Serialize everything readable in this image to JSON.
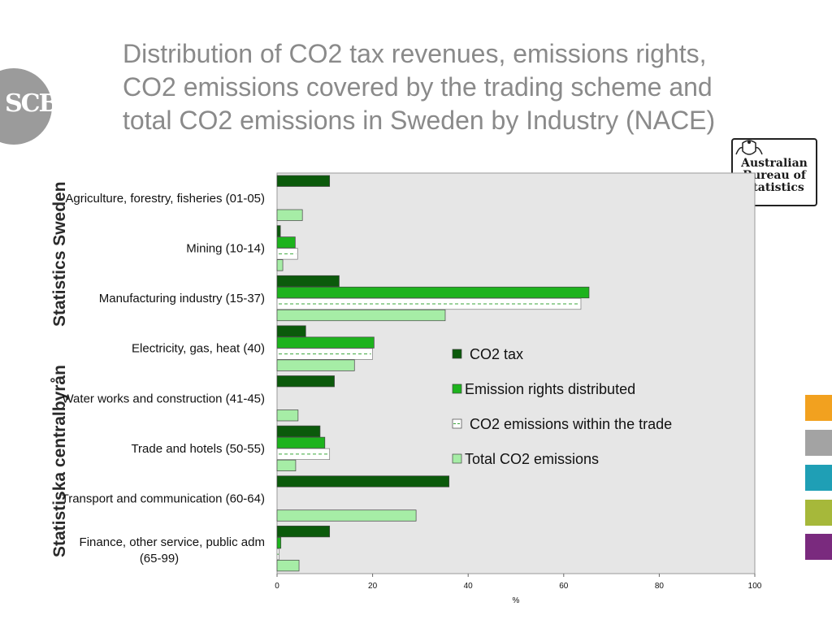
{
  "title": "Distribution of CO2 tax revenues, emissions rights,\nCO2 emissions covered by the trading scheme and\ntotal CO2 emissions in Sweden by Industry (NACE)",
  "side_branding": {
    "logo_text": "SCB",
    "vertical_text_1": "Statistics Sweden",
    "vertical_text_2": "Statistiska centralbyrån"
  },
  "abs_logo": {
    "line1": "Australian",
    "line2": "Bureau of",
    "line3": "Statistics"
  },
  "swatches": [
    "#f2a11f",
    "#a3a3a3",
    "#1f9fb5",
    "#a6b83a",
    "#7a2a7e"
  ],
  "colors": {
    "plot_background": "#e6e6e6",
    "co2_tax": "#0b5a0b",
    "emission_rights": "#1db31d",
    "within_trade": "#ffffff",
    "within_trade_dash": "#3aa63a",
    "total": "#a6eda6"
  },
  "chart_data": {
    "type": "bar",
    "orientation": "horizontal",
    "categories": [
      "Agriculture, forestry, fisheries (01-05)",
      "Mining (10-14)",
      "Manufacturing industry (15-37)",
      "Electricity, gas, heat (40)",
      "Water works and construction (41-45)",
      "Trade and hotels (50-55)",
      "Transport and communication (60-64)",
      "Finance, other service, public adm (65-99)"
    ],
    "series": [
      {
        "name": "CO2 tax",
        "values": [
          11,
          0.7,
          13,
          6,
          12,
          9,
          36,
          11
        ]
      },
      {
        "name": "Emission rights distributed",
        "values": [
          0,
          3.8,
          65.3,
          20.3,
          0,
          10,
          0,
          0.8
        ]
      },
      {
        "name": "CO2 emissions within the trade",
        "values": [
          0,
          4.3,
          63.6,
          20,
          0,
          11,
          0,
          0.4
        ]
      },
      {
        "name": "Total CO2 emissions",
        "values": [
          5.3,
          1.2,
          35.2,
          16.2,
          4.4,
          3.9,
          29.1,
          4.6
        ]
      }
    ],
    "xlabel": "%",
    "ylabel": "",
    "xlim": [
      0,
      100
    ],
    "xticks": [
      0,
      20,
      40,
      60,
      80,
      100
    ],
    "grid": false,
    "legend_position": "right-center"
  }
}
